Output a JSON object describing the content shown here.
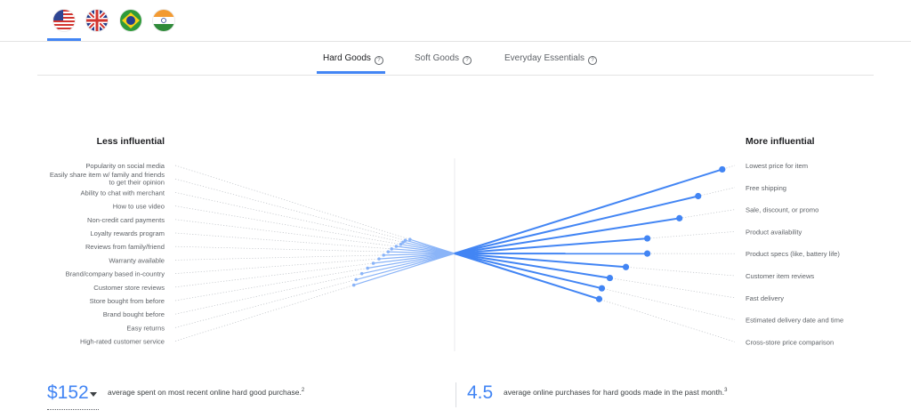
{
  "flags": [
    {
      "name": "us-flag-icon"
    },
    {
      "name": "uk-flag-icon"
    },
    {
      "name": "brazil-flag-icon"
    },
    {
      "name": "india-flag-icon"
    }
  ],
  "tabs": [
    {
      "label": "Hard Goods",
      "active": true
    },
    {
      "label": "Soft Goods",
      "active": false
    },
    {
      "label": "Everyday Essentials",
      "active": false
    }
  ],
  "help_glyph": "?",
  "chart_data": {
    "type": "scatter",
    "less_influential": {
      "title": "Less influential",
      "items": [
        {
          "label": "Popularity on social media",
          "value": 0.39
        },
        {
          "label": "Easily share item w/ family and friends to get their opinion",
          "value": 0.43
        },
        {
          "label": "Ability to chat with merchant",
          "value": 0.45
        },
        {
          "label": "How to use video",
          "value": 0.47
        },
        {
          "label": "Non-credit card payments",
          "value": 0.51
        },
        {
          "label": "Loyalty rewards program",
          "value": 0.55
        },
        {
          "label": "Reviews from family/friend",
          "value": 0.58
        },
        {
          "label": "Warranty available",
          "value": 0.62
        },
        {
          "label": "Brand/company based in-country",
          "value": 0.66
        },
        {
          "label": "Customer store reviews",
          "value": 0.71
        },
        {
          "label": "Store bought from before",
          "value": 0.76
        },
        {
          "label": "Brand bought before",
          "value": 0.81
        },
        {
          "label": "Easy returns",
          "value": 0.86
        },
        {
          "label": "High-rated customer service",
          "value": 0.88
        }
      ]
    },
    "more_influential": {
      "title": "More influential",
      "items": [
        {
          "label": "Lowest price for item",
          "value": 1.0
        },
        {
          "label": "Free shipping",
          "value": 0.91
        },
        {
          "label": "Sale, discount, or promo",
          "value": 0.84
        },
        {
          "label": "Product availability",
          "value": 0.72
        },
        {
          "label": "Product specs (like, battery life)",
          "value": 0.72
        },
        {
          "label": "Customer item reviews",
          "value": 0.64
        },
        {
          "label": "Fast delivery",
          "value": 0.58
        },
        {
          "label": "Estimated delivery date and time",
          "value": 0.55
        },
        {
          "label": "Cross-store price comparison",
          "value": 0.54
        }
      ]
    },
    "colors": {
      "strong": "#4285f4",
      "weak": "#8ab4f8",
      "guide": "#bdc1c6"
    }
  },
  "stats": [
    {
      "value": "$152",
      "text": "average spent on most recent online hard good purchase.",
      "note": "2"
    },
    {
      "value": "4.5",
      "text": "average online purchases for hard goods made in the past month.",
      "note": "3"
    }
  ]
}
